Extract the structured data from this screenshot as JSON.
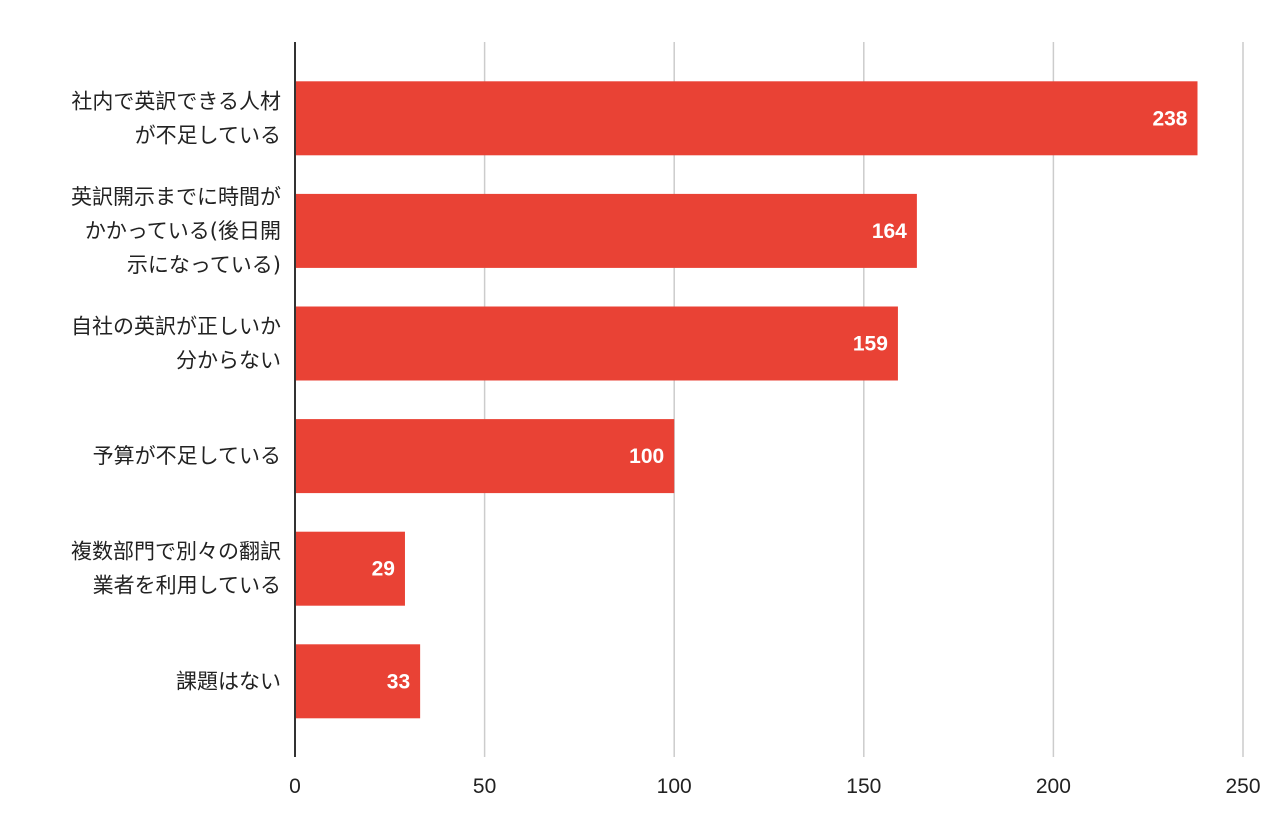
{
  "chart_data": {
    "type": "bar",
    "orientation": "horizontal",
    "categories": [
      [
        "社内で英訳できる人材",
        "が不足している"
      ],
      [
        "英訳開示までに時間が",
        "かかっている(後日開",
        "示になっている)"
      ],
      [
        "自社の英訳が正しいか",
        "分からない"
      ],
      [
        "予算が不足している"
      ],
      [
        "複数部門で別々の翻訳",
        "業者を利用している"
      ],
      [
        "課題はない"
      ]
    ],
    "values": [
      238,
      164,
      159,
      100,
      29,
      33
    ],
    "xlim": [
      0,
      250
    ],
    "xticks": [
      0,
      50,
      100,
      150,
      200,
      250
    ],
    "title": "",
    "xlabel": "",
    "ylabel": "",
    "grid": true,
    "legend": "none",
    "data_labels": true,
    "colors": {
      "bar": "#E94235",
      "grid": "#cccccc",
      "axis": "#333333",
      "text": "#222222",
      "data_label": "#ffffff"
    }
  }
}
